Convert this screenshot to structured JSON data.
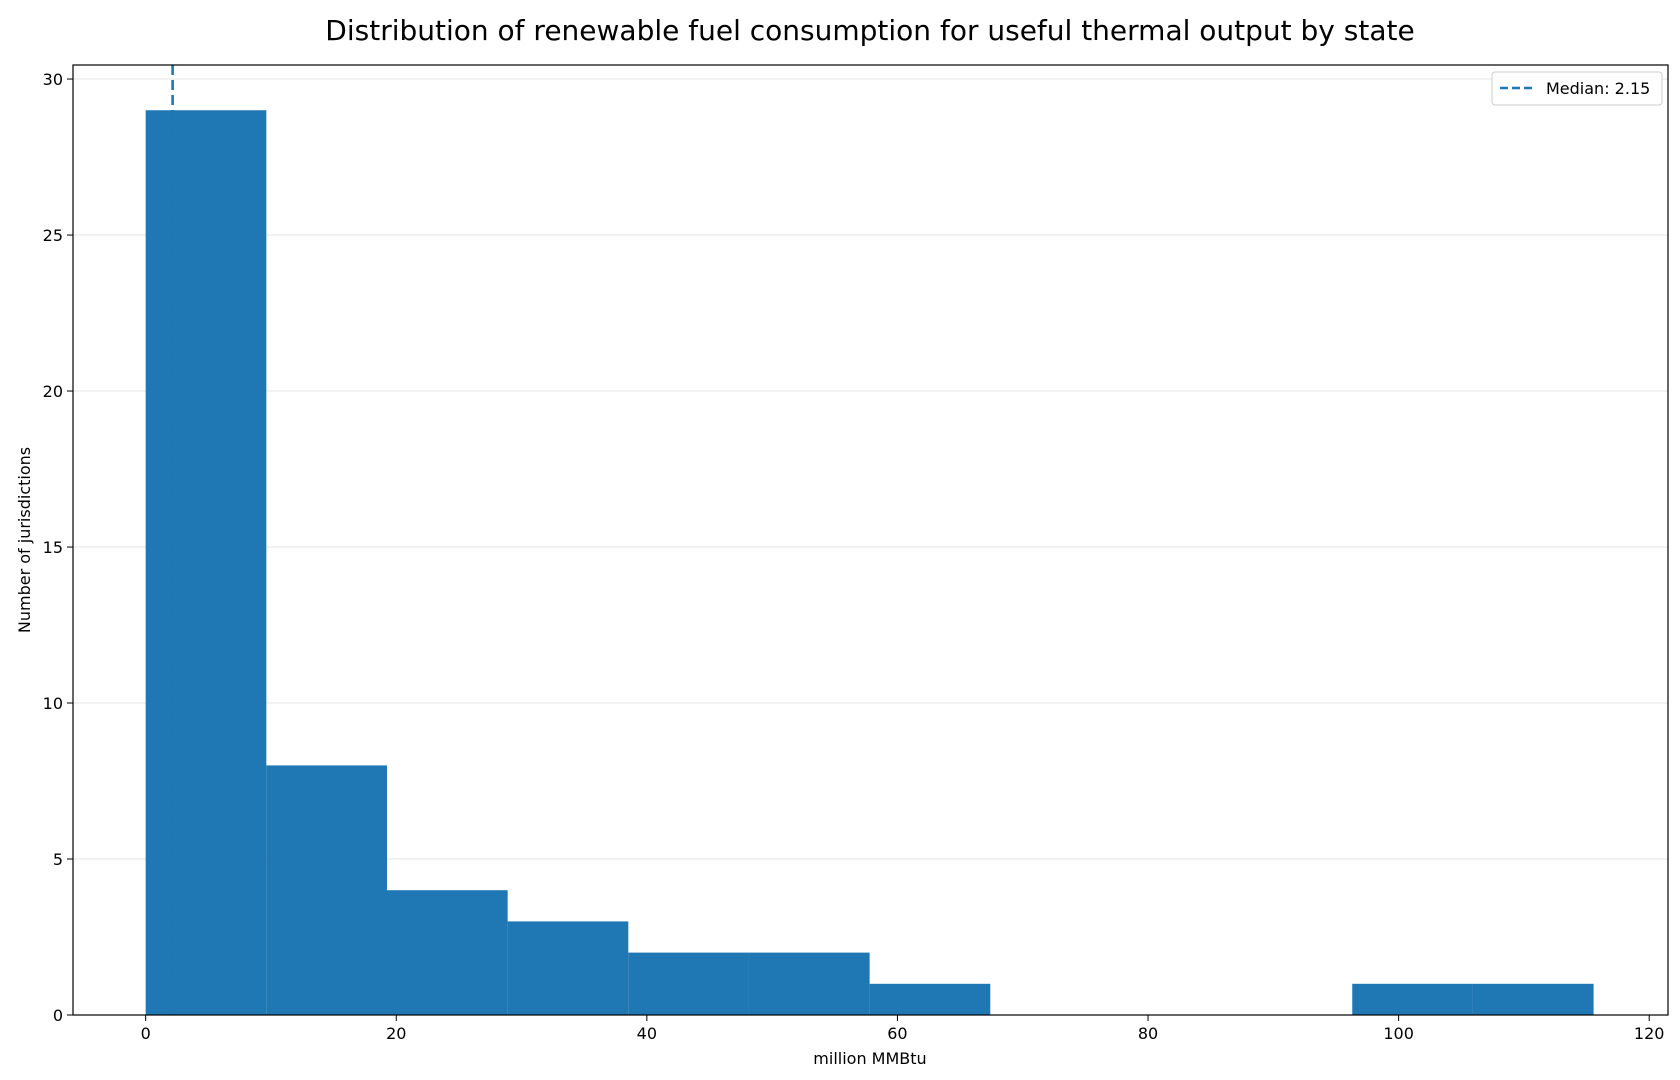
{
  "chart_data": {
    "type": "bar",
    "subtype": "histogram",
    "title": "Distribution of renewable fuel consumption for useful thermal output by state",
    "xlabel": "million MMBtu",
    "ylabel": "Number of jurisdictions",
    "xlim": [
      -5.8,
      121.5
    ],
    "ylim": [
      0,
      30.45
    ],
    "xticks": [
      0,
      20,
      40,
      60,
      80,
      100,
      120
    ],
    "yticks": [
      0,
      5,
      10,
      15,
      20,
      25,
      30
    ],
    "grid": "y",
    "bin_edges": [
      0,
      9.63,
      19.26,
      28.89,
      38.52,
      48.15,
      57.78,
      67.41,
      77.04,
      86.67,
      96.3,
      105.93,
      115.56
    ],
    "counts": [
      29,
      8,
      4,
      3,
      2,
      2,
      1,
      0,
      0,
      0,
      1,
      1
    ],
    "bar_color": "#1f77b4",
    "median": {
      "value": 2.15,
      "label": "Median: 2.15",
      "color": "#1f77b4",
      "style": "dashed"
    },
    "legend_position": "top-right"
  }
}
